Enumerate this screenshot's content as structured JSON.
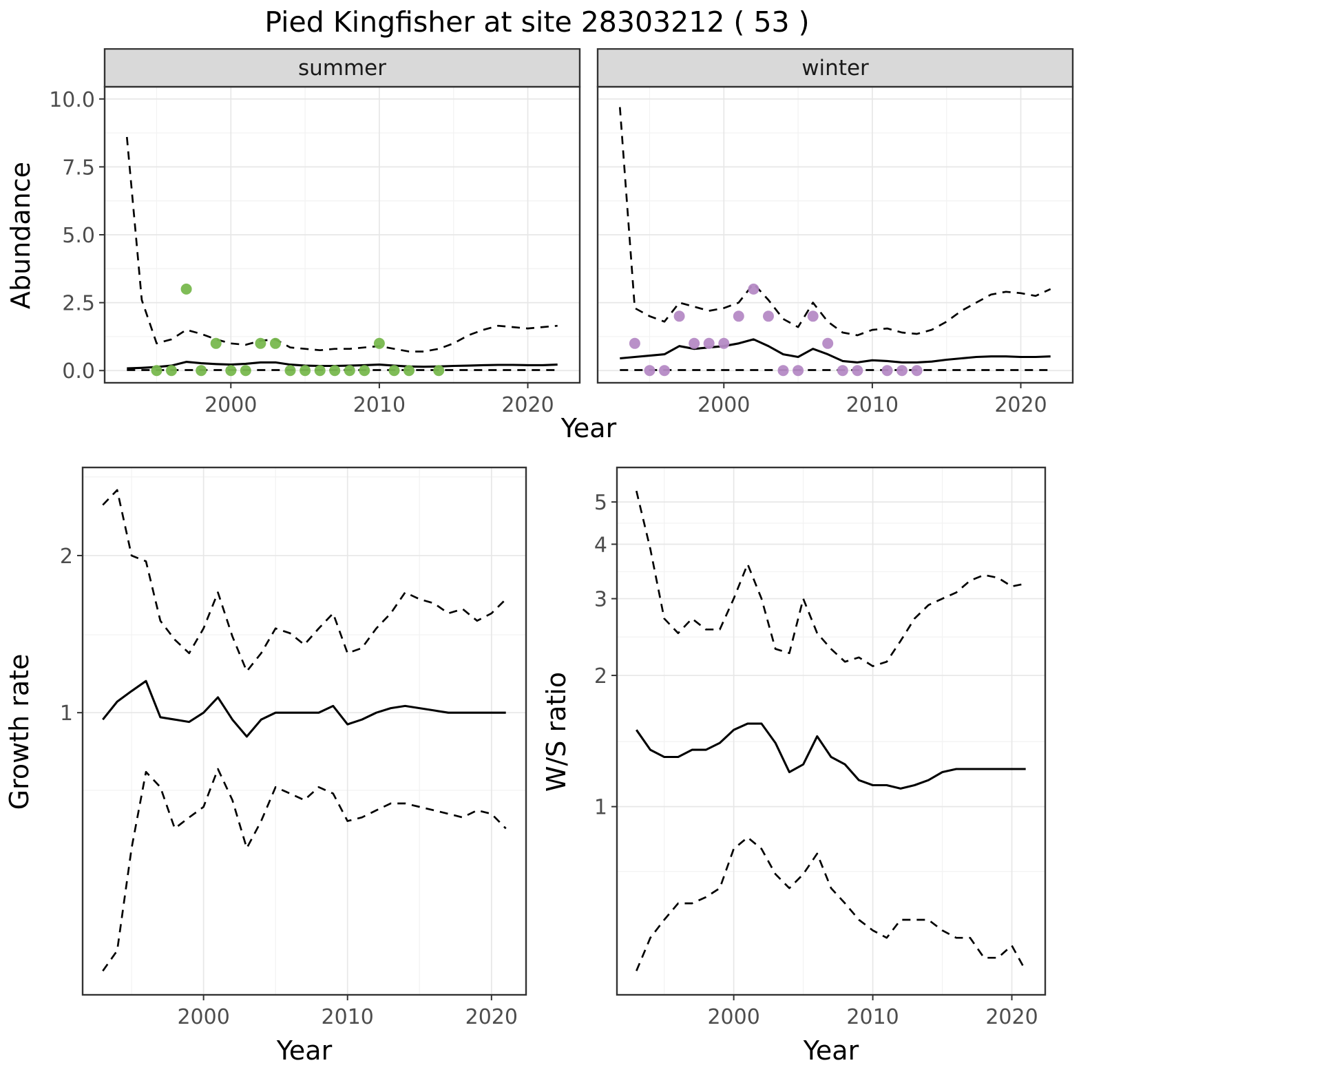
{
  "title": "Pied Kingfisher at site 28303212 ( 53 )",
  "labels": {
    "year": "Year",
    "abundance": "Abundance",
    "growth_rate": "Growth rate",
    "ws_ratio": "W/S ratio"
  },
  "colors": {
    "summer_point": "#78b84e",
    "winter_point": "#b58ac5",
    "line": "#000000",
    "strip_bg": "#d9d9d9",
    "panel_border": "#333333",
    "grid_major": "#e7e7e7",
    "grid_minor": "#f3f3f3",
    "tick_text": "#4d4d4d",
    "strip_text": "#1a1a1a"
  },
  "chart_data": [
    {
      "type": "line",
      "facet_label": "summer",
      "xlabel": "Year",
      "ylabel": "Abundance",
      "xlim": [
        1991.5,
        2023.5
      ],
      "ylim": [
        -0.45,
        10.45
      ],
      "xticks": [
        2000,
        2010,
        2020
      ],
      "xtick_labels": [
        "2000",
        "2010",
        "2020"
      ],
      "xticks_minor": [
        1995,
        2005,
        2015
      ],
      "yticks": [
        0,
        2.5,
        5,
        7.5,
        10
      ],
      "ytick_labels": [
        "0.0",
        "2.5",
        "5.0",
        "7.5",
        "10.0"
      ],
      "yticks_minor": [
        1.25,
        3.75,
        6.25,
        8.75
      ],
      "show_y_axis": true,
      "years": [
        1993,
        1994,
        1995,
        1996,
        1997,
        1998,
        1999,
        2000,
        2001,
        2002,
        2003,
        2004,
        2005,
        2006,
        2007,
        2008,
        2009,
        2010,
        2011,
        2012,
        2013,
        2014,
        2015,
        2016,
        2017,
        2018,
        2019,
        2020,
        2021,
        2022
      ],
      "lines": [
        {
          "name": "upper_ci",
          "style": "dashed",
          "y": [
            8.6,
            2.6,
            1.0,
            1.15,
            1.5,
            1.35,
            1.15,
            1.0,
            0.95,
            1.1,
            1.15,
            0.85,
            0.8,
            0.75,
            0.8,
            0.8,
            0.85,
            0.9,
            0.8,
            0.7,
            0.7,
            0.8,
            1.0,
            1.3,
            1.5,
            1.65,
            1.6,
            1.55,
            1.6,
            1.65
          ]
        },
        {
          "name": "fit",
          "style": "solid",
          "y": [
            0.08,
            0.1,
            0.13,
            0.18,
            0.32,
            0.27,
            0.24,
            0.22,
            0.25,
            0.3,
            0.3,
            0.22,
            0.18,
            0.17,
            0.17,
            0.18,
            0.2,
            0.22,
            0.18,
            0.15,
            0.14,
            0.15,
            0.17,
            0.18,
            0.2,
            0.21,
            0.21,
            0.2,
            0.2,
            0.22
          ]
        },
        {
          "name": "lower_ci",
          "style": "dashed",
          "y": [
            0.02,
            0.02,
            0.02,
            0.02,
            0.02,
            0.02,
            0.02,
            0.02,
            0.02,
            0.02,
            0.02,
            0.02,
            0.02,
            0.02,
            0.02,
            0.02,
            0.02,
            0.02,
            0.02,
            0.02,
            0.02,
            0.02,
            0.02,
            0.02,
            0.02,
            0.02,
            0.02,
            0.02,
            0.02,
            0.02
          ]
        }
      ],
      "points": {
        "color_key": "summer_point",
        "x": [
          1995,
          1996,
          1997,
          1998,
          1999,
          2000,
          2001,
          2002,
          2003,
          2004,
          2005,
          2006,
          2007,
          2008,
          2009,
          2010,
          2011,
          2012,
          2014
        ],
        "y": [
          0,
          0,
          3,
          0,
          1,
          0,
          0,
          1,
          1,
          0,
          0,
          0,
          0,
          0,
          0,
          1,
          0,
          0,
          0
        ]
      }
    },
    {
      "type": "line",
      "facet_label": "winter",
      "xlabel": "Year",
      "ylabel": "Abundance",
      "xlim": [
        1991.5,
        2023.5
      ],
      "ylim": [
        -0.45,
        10.45
      ],
      "xticks": [
        2000,
        2010,
        2020
      ],
      "xtick_labels": [
        "2000",
        "2010",
        "2020"
      ],
      "xticks_minor": [
        1995,
        2005,
        2015
      ],
      "yticks": [
        0,
        2.5,
        5,
        7.5,
        10
      ],
      "ytick_labels": [
        "0.0",
        "2.5",
        "5.0",
        "7.5",
        "10.0"
      ],
      "yticks_minor": [
        1.25,
        3.75,
        6.25,
        8.75
      ],
      "show_y_axis": false,
      "years": [
        1993,
        1994,
        1995,
        1996,
        1997,
        1998,
        1999,
        2000,
        2001,
        2002,
        2003,
        2004,
        2005,
        2006,
        2007,
        2008,
        2009,
        2010,
        2011,
        2012,
        2013,
        2014,
        2015,
        2016,
        2017,
        2018,
        2019,
        2020,
        2021,
        2022
      ],
      "lines": [
        {
          "name": "upper_ci",
          "style": "dashed",
          "y": [
            9.7,
            2.3,
            2.0,
            1.8,
            2.5,
            2.35,
            2.2,
            2.3,
            2.5,
            3.2,
            2.6,
            1.9,
            1.6,
            2.5,
            1.8,
            1.4,
            1.3,
            1.5,
            1.55,
            1.4,
            1.35,
            1.5,
            1.8,
            2.2,
            2.5,
            2.8,
            2.9,
            2.85,
            2.75,
            3.0
          ]
        },
        {
          "name": "fit",
          "style": "solid",
          "y": [
            0.45,
            0.5,
            0.55,
            0.6,
            0.9,
            0.8,
            0.85,
            0.9,
            1.0,
            1.15,
            0.9,
            0.6,
            0.5,
            0.8,
            0.6,
            0.35,
            0.3,
            0.38,
            0.35,
            0.3,
            0.3,
            0.33,
            0.4,
            0.45,
            0.5,
            0.52,
            0.52,
            0.5,
            0.5,
            0.52
          ]
        },
        {
          "name": "lower_ci",
          "style": "dashed",
          "y": [
            0.02,
            0.02,
            0.02,
            0.02,
            0.02,
            0.02,
            0.02,
            0.02,
            0.02,
            0.02,
            0.02,
            0.02,
            0.02,
            0.02,
            0.02,
            0.02,
            0.02,
            0.02,
            0.02,
            0.02,
            0.02,
            0.02,
            0.02,
            0.02,
            0.02,
            0.02,
            0.02,
            0.02,
            0.02,
            0.02
          ]
        }
      ],
      "points": {
        "color_key": "winter_point",
        "x": [
          1994,
          1995,
          1996,
          1997,
          1998,
          1999,
          2000,
          2001,
          2002,
          2003,
          2004,
          2005,
          2006,
          2007,
          2008,
          2009,
          2011,
          2012,
          2013
        ],
        "y": [
          1,
          0,
          0,
          2,
          1,
          1,
          1,
          2,
          3,
          2,
          0,
          0,
          2,
          1,
          0,
          0,
          0,
          0,
          0
        ]
      }
    },
    {
      "type": "line",
      "facet_label": null,
      "xlabel": "Year",
      "ylabel": "Growth rate",
      "xlim": [
        1991.6,
        2022.4
      ],
      "ylim": [
        0.288,
        2.95
      ],
      "yscale": "log10",
      "xticks": [
        2000,
        2010,
        2020
      ],
      "xtick_labels": [
        "2000",
        "2010",
        "2020"
      ],
      "xticks_minor": [
        1995,
        2005,
        2015
      ],
      "yticks": [
        1,
        2
      ],
      "ytick_labels": [
        "1",
        "2"
      ],
      "yticks_minor": [
        0.71,
        1.41,
        2.83
      ],
      "show_y_axis": true,
      "years": [
        1993,
        1994,
        1995,
        1996,
        1997,
        1998,
        1999,
        2000,
        2001,
        2002,
        2003,
        2004,
        2005,
        2006,
        2007,
        2008,
        2009,
        2010,
        2011,
        2012,
        2013,
        2014,
        2015,
        2016,
        2017,
        2018,
        2019,
        2020,
        2021
      ],
      "lines": [
        {
          "name": "upper_ci",
          "style": "dashed",
          "y": [
            2.5,
            2.67,
            2.0,
            1.95,
            1.5,
            1.38,
            1.3,
            1.45,
            1.7,
            1.4,
            1.2,
            1.3,
            1.45,
            1.42,
            1.35,
            1.45,
            1.55,
            1.3,
            1.33,
            1.45,
            1.55,
            1.7,
            1.65,
            1.62,
            1.55,
            1.58,
            1.5,
            1.55,
            1.65
          ]
        },
        {
          "name": "fit",
          "style": "solid",
          "y": [
            0.97,
            1.05,
            1.1,
            1.15,
            0.98,
            0.97,
            0.96,
            1.0,
            1.07,
            0.97,
            0.9,
            0.97,
            1.0,
            1.0,
            1.0,
            1.0,
            1.03,
            0.95,
            0.97,
            1.0,
            1.02,
            1.03,
            1.02,
            1.01,
            1.0,
            1.0,
            1.0,
            1.0,
            1.0
          ]
        },
        {
          "name": "lower_ci",
          "style": "dashed",
          "y": [
            0.32,
            0.35,
            0.55,
            0.77,
            0.72,
            0.6,
            0.63,
            0.66,
            0.78,
            0.68,
            0.55,
            0.62,
            0.72,
            0.7,
            0.68,
            0.72,
            0.7,
            0.62,
            0.63,
            0.65,
            0.67,
            0.67,
            0.66,
            0.65,
            0.64,
            0.63,
            0.65,
            0.64,
            0.6
          ]
        }
      ],
      "points": null
    },
    {
      "type": "line",
      "facet_label": null,
      "xlabel": "Year",
      "ylabel": "W/S ratio",
      "xlim": [
        1991.6,
        2022.4
      ],
      "ylim": [
        0.37,
        6.0
      ],
      "yscale": "log10",
      "xticks": [
        2000,
        2010,
        2020
      ],
      "xtick_labels": [
        "2000",
        "2010",
        "2020"
      ],
      "xticks_minor": [
        1995,
        2005,
        2015
      ],
      "yticks": [
        1,
        2,
        3,
        4,
        5
      ],
      "ytick_labels": [
        "1",
        "2",
        "3",
        "4",
        "5"
      ],
      "yticks_minor": [
        0.71,
        1.41,
        2.45,
        3.46,
        4.47
      ],
      "show_y_axis": true,
      "years": [
        1993,
        1994,
        1995,
        1996,
        1997,
        1998,
        1999,
        2000,
        2001,
        2002,
        2003,
        2004,
        2005,
        2006,
        2007,
        2008,
        2009,
        2010,
        2011,
        2012,
        2013,
        2014,
        2015,
        2016,
        2017,
        2018,
        2019,
        2020,
        2021
      ],
      "lines": [
        {
          "name": "upper_ci",
          "style": "dashed",
          "y": [
            5.3,
            3.9,
            2.7,
            2.5,
            2.7,
            2.55,
            2.55,
            3.0,
            3.6,
            3.0,
            2.3,
            2.25,
            3.0,
            2.5,
            2.3,
            2.15,
            2.2,
            2.1,
            2.15,
            2.4,
            2.7,
            2.9,
            3.0,
            3.1,
            3.3,
            3.4,
            3.35,
            3.2,
            3.25
          ]
        },
        {
          "name": "fit",
          "style": "solid",
          "y": [
            1.5,
            1.35,
            1.3,
            1.3,
            1.35,
            1.35,
            1.4,
            1.5,
            1.55,
            1.55,
            1.4,
            1.2,
            1.25,
            1.45,
            1.3,
            1.25,
            1.15,
            1.12,
            1.12,
            1.1,
            1.12,
            1.15,
            1.2,
            1.22,
            1.22,
            1.22,
            1.22,
            1.22,
            1.22
          ]
        },
        {
          "name": "lower_ci",
          "style": "dashed",
          "y": [
            0.42,
            0.5,
            0.55,
            0.6,
            0.6,
            0.62,
            0.65,
            0.8,
            0.85,
            0.8,
            0.7,
            0.65,
            0.7,
            0.78,
            0.65,
            0.6,
            0.55,
            0.52,
            0.5,
            0.55,
            0.55,
            0.55,
            0.52,
            0.5,
            0.5,
            0.45,
            0.45,
            0.48,
            0.42
          ]
        }
      ],
      "points": null
    }
  ]
}
